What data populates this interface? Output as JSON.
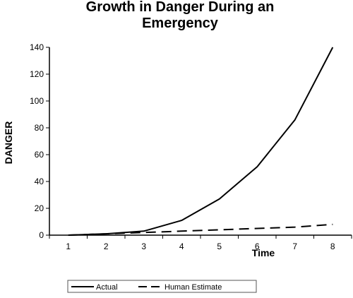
{
  "chart_data": {
    "type": "line",
    "title_lines": [
      "Growth in Danger During an",
      "Emergency"
    ],
    "xlabel": "Time",
    "ylabel": "DANGER",
    "x": [
      1,
      2,
      3,
      4,
      5,
      6,
      7,
      8
    ],
    "xlim": [
      0.5,
      8.5
    ],
    "ylim": [
      0,
      140
    ],
    "yticks": [
      0,
      20,
      40,
      60,
      80,
      100,
      120,
      140
    ],
    "grid": false,
    "legend_position": "bottom",
    "series": [
      {
        "name": "Actual",
        "values": [
          0,
          1,
          3,
          11,
          27,
          51,
          86,
          140
        ],
        "color": "#000000",
        "style": "solid"
      },
      {
        "name": "Human Estimate",
        "values": [
          0,
          1,
          2,
          3,
          4,
          5,
          6,
          8
        ],
        "color": "#000000",
        "style": "dashed"
      }
    ]
  }
}
